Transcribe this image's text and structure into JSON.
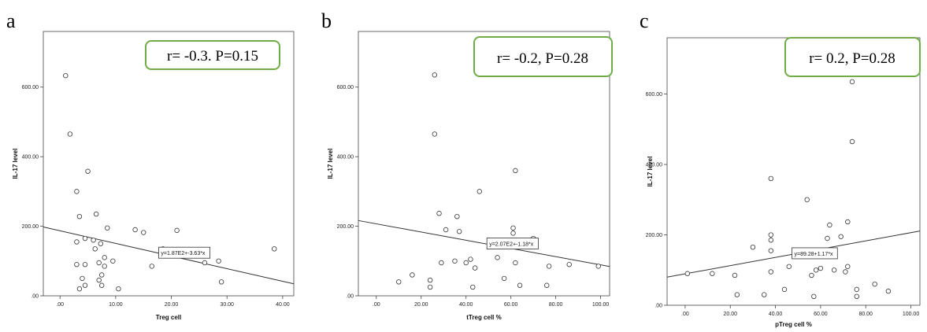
{
  "panels": [
    {
      "letter": "a",
      "annotation": "r= -0.3. P=0.15",
      "box_color": "#70ad47"
    },
    {
      "letter": "b",
      "annotation": "r= -0.2, P=0.28",
      "box_color": "#70ad47"
    },
    {
      "letter": "c",
      "annotation": "r= 0.2, P=0.28",
      "box_color": "#70ad47"
    }
  ],
  "chart_data": [
    {
      "type": "scatter",
      "title": "",
      "xlabel": "Treg cell",
      "ylabel": "IL-17 level",
      "xlim": [
        -3,
        42
      ],
      "ylim": [
        0,
        760
      ],
      "xticks": [
        0,
        10,
        20,
        30,
        40
      ],
      "xtick_labels": [
        ".00",
        "10.00",
        "20.00",
        "30.00",
        "40.00"
      ],
      "yticks": [
        0,
        200,
        400,
        600
      ],
      "ytick_labels": [
        ".00",
        "200.00",
        "400.00",
        "600.00"
      ],
      "grid": false,
      "fit_line": {
        "intercept": 187,
        "slope": -3.63,
        "label": "y=1.87E2+-3.63*x",
        "label_at_x": 18
      },
      "points": [
        {
          "x": 1,
          "y": 633
        },
        {
          "x": 1.8,
          "y": 465
        },
        {
          "x": 3,
          "y": 300
        },
        {
          "x": 5,
          "y": 358
        },
        {
          "x": 3.5,
          "y": 228
        },
        {
          "x": 6.5,
          "y": 235
        },
        {
          "x": 8.5,
          "y": 195
        },
        {
          "x": 13.5,
          "y": 190
        },
        {
          "x": 15,
          "y": 182
        },
        {
          "x": 21,
          "y": 188
        },
        {
          "x": 38.5,
          "y": 135
        },
        {
          "x": 3,
          "y": 155
        },
        {
          "x": 4.5,
          "y": 165
        },
        {
          "x": 6,
          "y": 160
        },
        {
          "x": 7.3,
          "y": 150
        },
        {
          "x": 6.3,
          "y": 135
        },
        {
          "x": 8,
          "y": 110
        },
        {
          "x": 7,
          "y": 95
        },
        {
          "x": 8,
          "y": 85
        },
        {
          "x": 9.5,
          "y": 100
        },
        {
          "x": 3,
          "y": 90
        },
        {
          "x": 4.5,
          "y": 90
        },
        {
          "x": 7.5,
          "y": 60
        },
        {
          "x": 4,
          "y": 50
        },
        {
          "x": 7,
          "y": 45
        },
        {
          "x": 7.5,
          "y": 30
        },
        {
          "x": 4.5,
          "y": 30
        },
        {
          "x": 3.5,
          "y": 20
        },
        {
          "x": 10.5,
          "y": 20
        },
        {
          "x": 16.5,
          "y": 85
        },
        {
          "x": 18.5,
          "y": 135
        },
        {
          "x": 26,
          "y": 95
        },
        {
          "x": 28.5,
          "y": 100
        },
        {
          "x": 29,
          "y": 40
        }
      ]
    },
    {
      "type": "scatter",
      "title": "",
      "xlabel": "tTreg cell %",
      "ylabel": "IL-17 level",
      "xlim": [
        -8,
        104
      ],
      "ylim": [
        0,
        760
      ],
      "xticks": [
        0,
        20,
        40,
        60,
        80,
        100
      ],
      "xtick_labels": [
        ".00",
        "20.00",
        "40.00",
        "60.00",
        "80.00",
        "100.00"
      ],
      "yticks": [
        0,
        200,
        400,
        600
      ],
      "ytick_labels": [
        ".00",
        "200.00",
        "400.00",
        "600.00"
      ],
      "grid": false,
      "fit_line": {
        "intercept": 207,
        "slope": -1.18,
        "label": "y=2.07E2+-1.18*x",
        "label_at_x": 50
      },
      "points": [
        {
          "x": 26,
          "y": 635
        },
        {
          "x": 26,
          "y": 465
        },
        {
          "x": 62,
          "y": 360
        },
        {
          "x": 46,
          "y": 300
        },
        {
          "x": 28,
          "y": 237
        },
        {
          "x": 36,
          "y": 228
        },
        {
          "x": 37,
          "y": 185
        },
        {
          "x": 31,
          "y": 190
        },
        {
          "x": 61,
          "y": 195
        },
        {
          "x": 61,
          "y": 180
        },
        {
          "x": 70,
          "y": 165
        },
        {
          "x": 61,
          "y": 155
        },
        {
          "x": 54,
          "y": 110
        },
        {
          "x": 42,
          "y": 105
        },
        {
          "x": 35,
          "y": 100
        },
        {
          "x": 40,
          "y": 95
        },
        {
          "x": 29,
          "y": 95
        },
        {
          "x": 44,
          "y": 80
        },
        {
          "x": 77,
          "y": 85
        },
        {
          "x": 86,
          "y": 90
        },
        {
          "x": 99,
          "y": 85
        },
        {
          "x": 62,
          "y": 95
        },
        {
          "x": 57,
          "y": 50
        },
        {
          "x": 10,
          "y": 40
        },
        {
          "x": 16,
          "y": 60
        },
        {
          "x": 24,
          "y": 45
        },
        {
          "x": 24,
          "y": 25
        },
        {
          "x": 43,
          "y": 25
        },
        {
          "x": 64,
          "y": 30
        },
        {
          "x": 76,
          "y": 30
        }
      ]
    },
    {
      "type": "scatter",
      "title": "",
      "xlabel": "pTreg cell %",
      "ylabel": "IL-17 level",
      "xlim": [
        -8,
        104
      ],
      "ylim": [
        0,
        760
      ],
      "xticks": [
        0,
        20,
        40,
        60,
        80,
        100
      ],
      "xtick_labels": [
        ".00",
        "20.00",
        "40.00",
        "60.00",
        "80.00",
        "100.00"
      ],
      "yticks": [
        0,
        200,
        400,
        600
      ],
      "ytick_labels": [
        ".00",
        "200.00",
        "400.00",
        "600.00"
      ],
      "grid": false,
      "fit_line": {
        "intercept": 89.28,
        "slope": 1.17,
        "label": "y=89.28+1.17*x",
        "label_at_x": 48
      },
      "points": [
        {
          "x": 74,
          "y": 635
        },
        {
          "x": 74,
          "y": 465
        },
        {
          "x": 38,
          "y": 360
        },
        {
          "x": 54,
          "y": 300
        },
        {
          "x": 72,
          "y": 237
        },
        {
          "x": 64,
          "y": 228
        },
        {
          "x": 38,
          "y": 200
        },
        {
          "x": 38,
          "y": 185
        },
        {
          "x": 63,
          "y": 190
        },
        {
          "x": 69,
          "y": 195
        },
        {
          "x": 30,
          "y": 165
        },
        {
          "x": 38,
          "y": 155
        },
        {
          "x": 60,
          "y": 105
        },
        {
          "x": 72,
          "y": 110
        },
        {
          "x": 66,
          "y": 100
        },
        {
          "x": 58,
          "y": 100
        },
        {
          "x": 46,
          "y": 110
        },
        {
          "x": 38,
          "y": 95
        },
        {
          "x": 56,
          "y": 85
        },
        {
          "x": 1,
          "y": 90
        },
        {
          "x": 12,
          "y": 90
        },
        {
          "x": 22,
          "y": 85
        },
        {
          "x": 71,
          "y": 95
        },
        {
          "x": 84,
          "y": 60
        },
        {
          "x": 76,
          "y": 45
        },
        {
          "x": 90,
          "y": 40
        },
        {
          "x": 44,
          "y": 45
        },
        {
          "x": 23,
          "y": 30
        },
        {
          "x": 35,
          "y": 30
        },
        {
          "x": 57,
          "y": 25
        },
        {
          "x": 76,
          "y": 25
        }
      ]
    }
  ]
}
